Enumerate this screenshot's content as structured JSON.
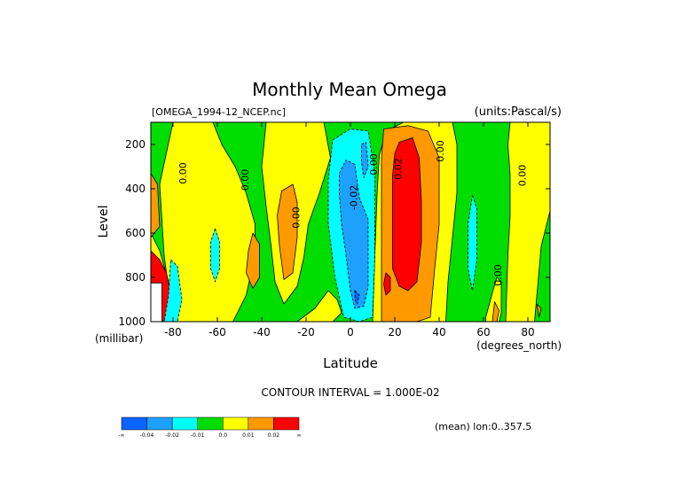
{
  "chart_data": {
    "type": "heatmap",
    "title": "Monthly Mean Omega",
    "source_file": "[OMEGA_1994-12_NCEP.nc]",
    "units": "(units:Pascal/s)",
    "xlabel": "Latitude",
    "x_unit": "(degrees_north)",
    "ylabel": "Level",
    "y_unit": "(millibar)",
    "xlim": [
      -90,
      90
    ],
    "ylim": [
      1000,
      100
    ],
    "x_ticks": [
      -80,
      -60,
      -40,
      -20,
      0,
      20,
      40,
      60,
      80
    ],
    "y_ticks": [
      200,
      400,
      600,
      800,
      1000
    ],
    "x_tick_labels": [
      "-80",
      "-60",
      "-40",
      "-20",
      "0",
      "20",
      "40",
      "60",
      "80"
    ],
    "y_tick_labels": [
      "200",
      "400",
      "600",
      "800",
      "1000"
    ],
    "contour_interval_text": "CONTOUR INTERVAL = 1.000E-02",
    "mean_text": "(mean) lon:0..357.5",
    "levels": [
      -0.04,
      -0.02,
      -0.01,
      0.0,
      0.01,
      0.02
    ],
    "colorbar": {
      "labels": [
        "-∞",
        "-0.04",
        "-0.02",
        "-0.01",
        "0.0",
        "0.01",
        "0.02",
        "∞"
      ],
      "colors": [
        "#0a64ff",
        "#1ea0ff",
        "#00ffff",
        "#00dd00",
        "#ffff00",
        "#ff9900",
        "#ff0000"
      ]
    },
    "contour_labels": [
      {
        "lat": -74,
        "lev": 330,
        "text": "0.00"
      },
      {
        "lat": -46,
        "lev": 360,
        "text": "0.00"
      },
      {
        "lat": -23,
        "lev": 530,
        "text": "0.00"
      },
      {
        "lat": 3,
        "lev": 440,
        "text": "-0.02"
      },
      {
        "lat": 12,
        "lev": 290,
        "text": "0.00"
      },
      {
        "lat": 23,
        "lev": 310,
        "text": "0.02"
      },
      {
        "lat": 42,
        "lev": 230,
        "text": "0.00"
      },
      {
        "lat": 68,
        "lev": 790,
        "text": "0.00"
      },
      {
        "lat": 79,
        "lev": 340,
        "text": "0.00"
      }
    ],
    "regions": [
      {
        "value": 0.005,
        "pts": [
          [
            -80,
            100
          ],
          [
            -62,
            100
          ],
          [
            -58,
            200
          ],
          [
            -52,
            300
          ],
          [
            -47,
            420
          ],
          [
            -43,
            560
          ],
          [
            -43,
            700
          ],
          [
            -47,
            880
          ],
          [
            -53,
            1000
          ],
          [
            -80,
            1000
          ],
          [
            -84,
            700
          ],
          [
            -86,
            380
          ]
        ]
      },
      {
        "value": 0.005,
        "pts": [
          [
            -38,
            100
          ],
          [
            -12,
            100
          ],
          [
            -9,
            260
          ],
          [
            -14,
            420
          ],
          [
            -19,
            560
          ],
          [
            -21,
            710
          ],
          [
            -24,
            840
          ],
          [
            -30,
            920
          ],
          [
            -34,
            820
          ],
          [
            -36,
            640
          ],
          [
            -38,
            480
          ],
          [
            -40,
            300
          ]
        ]
      },
      {
        "value": 0.005,
        "pts": [
          [
            -10,
            860
          ],
          [
            -6,
            900
          ],
          [
            -4,
            960
          ],
          [
            -8,
            1000
          ],
          [
            -24,
            1000
          ],
          [
            -16,
            940
          ]
        ]
      },
      {
        "value": 0.005,
        "pts": [
          [
            24,
            100
          ],
          [
            46,
            100
          ],
          [
            48,
            200
          ],
          [
            48,
            420
          ],
          [
            46,
            620
          ],
          [
            44,
            820
          ],
          [
            43,
            1000
          ],
          [
            10,
            1000
          ],
          [
            11,
            700
          ],
          [
            12,
            430
          ],
          [
            13,
            250
          ],
          [
            16,
            140
          ]
        ]
      },
      {
        "value": 0.005,
        "pts": [
          [
            72,
            100
          ],
          [
            90,
            100
          ],
          [
            90,
            500
          ],
          [
            86,
            660
          ],
          [
            83,
            1000
          ],
          [
            70,
            1000
          ],
          [
            71,
            700
          ],
          [
            72,
            520
          ],
          [
            72,
            340
          ],
          [
            71,
            200
          ]
        ]
      },
      {
        "value": 0.005,
        "pts": [
          [
            -90,
            1000
          ],
          [
            -90,
            600
          ],
          [
            -86,
            680
          ],
          [
            -82,
            820
          ],
          [
            -79,
            920
          ],
          [
            -78,
            1000
          ]
        ]
      },
      {
        "value": 0.005,
        "pts": [
          [
            61,
            980
          ],
          [
            64,
            870
          ],
          [
            66,
            800
          ],
          [
            68,
            820
          ],
          [
            68,
            960
          ],
          [
            67,
            1000
          ],
          [
            61,
            1000
          ]
        ]
      },
      {
        "value": 0.015,
        "pts": [
          [
            -90,
            330
          ],
          [
            -87,
            380
          ],
          [
            -86,
            570
          ],
          [
            -90,
            620
          ]
        ]
      },
      {
        "value": 0.015,
        "pts": [
          [
            -31,
            410
          ],
          [
            -26,
            380
          ],
          [
            -24,
            460
          ],
          [
            -24,
            620
          ],
          [
            -26,
            780
          ],
          [
            -30,
            810
          ],
          [
            -32,
            660
          ],
          [
            -33,
            520
          ]
        ]
      },
      {
        "value": 0.015,
        "pts": [
          [
            -44,
            600
          ],
          [
            -41,
            650
          ],
          [
            -41,
            800
          ],
          [
            -44,
            850
          ],
          [
            -47,
            780
          ],
          [
            -46,
            680
          ]
        ]
      },
      {
        "value": 0.015,
        "pts": [
          [
            15,
            130
          ],
          [
            26,
            115
          ],
          [
            35,
            140
          ],
          [
            40,
            260
          ],
          [
            40,
            560
          ],
          [
            38,
            760
          ],
          [
            36,
            980
          ],
          [
            30,
            1000
          ],
          [
            14,
            1000
          ],
          [
            14,
            760
          ],
          [
            14,
            500
          ],
          [
            14,
            260
          ]
        ]
      },
      {
        "value": 0.015,
        "pts": [
          [
            65,
            910
          ],
          [
            67,
            950
          ],
          [
            66,
            1000
          ],
          [
            64,
            1000
          ]
        ]
      },
      {
        "value": 0.015,
        "pts": [
          [
            84,
            920
          ],
          [
            86,
            940
          ],
          [
            85,
            980
          ]
        ]
      },
      {
        "value": 0.025,
        "pts": [
          [
            22,
            190
          ],
          [
            28,
            170
          ],
          [
            31,
            260
          ],
          [
            32,
            460
          ],
          [
            32,
            640
          ],
          [
            30,
            820
          ],
          [
            26,
            860
          ],
          [
            22,
            840
          ],
          [
            19,
            760
          ],
          [
            19,
            520
          ],
          [
            19,
            340
          ],
          [
            20,
            240
          ]
        ]
      },
      {
        "value": 0.025,
        "pts": [
          [
            16,
            780
          ],
          [
            18,
            800
          ],
          [
            18,
            860
          ],
          [
            16,
            880
          ],
          [
            15,
            830
          ]
        ]
      },
      {
        "value": 0.025,
        "pts": [
          [
            -90,
            680
          ],
          [
            -86,
            720
          ],
          [
            -83,
            780
          ],
          [
            -81,
            870
          ],
          [
            -81,
            960
          ],
          [
            -84,
            1000
          ],
          [
            -87,
            980
          ],
          [
            -88,
            870
          ],
          [
            -90,
            830
          ]
        ]
      },
      {
        "value": -0.015,
        "pts": [
          [
            -8,
            180
          ],
          [
            0,
            130
          ],
          [
            8,
            140
          ],
          [
            11,
            330
          ],
          [
            11,
            700
          ],
          [
            10,
            980
          ],
          [
            4,
            1000
          ],
          [
            -3,
            980
          ],
          [
            -7,
            800
          ],
          [
            -10,
            560
          ],
          [
            -10,
            360
          ]
        ]
      },
      {
        "value": -0.015,
        "pts": [
          [
            -61,
            580
          ],
          [
            -59,
            640
          ],
          [
            -59,
            760
          ],
          [
            -61,
            820
          ],
          [
            -63,
            760
          ],
          [
            -63,
            640
          ]
        ]
      },
      {
        "value": -0.015,
        "pts": [
          [
            55,
            430
          ],
          [
            57,
            490
          ],
          [
            57,
            720
          ],
          [
            55,
            860
          ],
          [
            53,
            760
          ],
          [
            53,
            560
          ]
        ]
      },
      {
        "value": -0.015,
        "pts": [
          [
            -81,
            720
          ],
          [
            -78,
            750
          ],
          [
            -76,
            900
          ],
          [
            -78,
            1000
          ],
          [
            -84,
            1000
          ],
          [
            -82,
            880
          ]
        ]
      },
      {
        "value": -0.025,
        "pts": [
          [
            -5,
            330
          ],
          [
            -2,
            270
          ],
          [
            2,
            290
          ],
          [
            4,
            440
          ],
          [
            8,
            540
          ],
          [
            8,
            840
          ],
          [
            6,
            930
          ],
          [
            2,
            940
          ],
          [
            0,
            860
          ],
          [
            -2,
            700
          ],
          [
            -4,
            560
          ],
          [
            -5,
            430
          ]
        ]
      },
      {
        "value": -0.025,
        "pts": [
          [
            5,
            200
          ],
          [
            7,
            190
          ],
          [
            8,
            300
          ],
          [
            6,
            350
          ],
          [
            5,
            280
          ]
        ]
      },
      {
        "value": -0.045,
        "pts": [
          [
            2,
            860
          ],
          [
            4,
            880
          ],
          [
            3,
            920
          ],
          [
            2,
            900
          ]
        ]
      },
      {
        "value": 0.005,
        "pts": [
          [
            -90,
            825
          ],
          [
            -85,
            825
          ],
          [
            -85,
            1000
          ],
          [
            -90,
            1000
          ]
        ],
        "fill": "#ffffff"
      }
    ]
  }
}
